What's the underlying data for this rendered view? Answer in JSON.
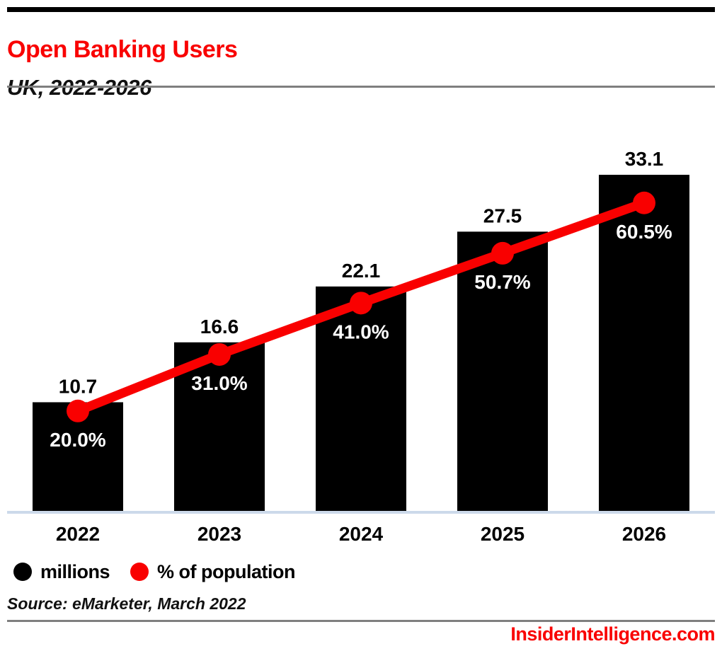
{
  "header": {
    "title": "Open Banking Users",
    "subtitle": "UK, 2022-2026"
  },
  "chart_data": {
    "type": "bar",
    "subtype": "bar-with-line-overlay",
    "title": "Open Banking Users",
    "subtitle": "UK, 2022-2026",
    "categories": [
      "2022",
      "2023",
      "2024",
      "2025",
      "2026"
    ],
    "series": [
      {
        "name": "millions",
        "type": "bar",
        "color": "#000000",
        "values": [
          10.7,
          16.6,
          22.1,
          27.5,
          33.1
        ],
        "labels": [
          "10.7",
          "16.6",
          "22.1",
          "27.5",
          "33.1"
        ]
      },
      {
        "name": "% of population",
        "type": "line",
        "color": "#f90000",
        "values": [
          20.0,
          31.0,
          41.0,
          50.7,
          60.5
        ],
        "labels": [
          "20.0%",
          "31.0%",
          "41.0%",
          "50.7%",
          "60.5%"
        ]
      }
    ],
    "xlabel": "",
    "ylabel": "",
    "bar_axis_range": [
      0,
      34.5
    ],
    "pct_axis_range": [
      0,
      65
    ],
    "grid": false,
    "legend_position": "bottom-left",
    "value_labels_shown": true
  },
  "legend": {
    "items": [
      {
        "label": "millions",
        "color": "#000000"
      },
      {
        "label": "% of population",
        "color": "#f90000"
      }
    ]
  },
  "source": "Source: eMarketer, March 2022",
  "footer": {
    "brand": "InsiderIntelligence.com"
  },
  "colors": {
    "accent_red": "#f90000",
    "bar_black": "#000000",
    "axis_line": "#ccd9ea",
    "rule_gray": "#7f7f7f",
    "background": "#ffffff"
  }
}
